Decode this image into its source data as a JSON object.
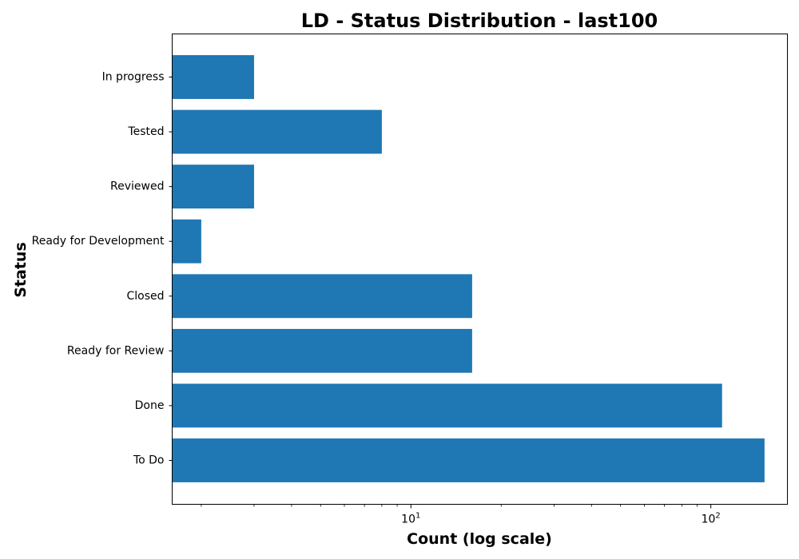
{
  "chart_data": {
    "type": "bar",
    "orientation": "horizontal",
    "title": "LD - Status Distribution - last100",
    "xlabel": "Count (log scale)",
    "ylabel": "Status",
    "x_scale": "log",
    "xlim": [
      1.6,
      180
    ],
    "x_ticks": [
      {
        "value": 10,
        "base": "10",
        "exponent": "1"
      },
      {
        "value": 100,
        "base": "10",
        "exponent": "2"
      }
    ],
    "categories": [
      "In progress",
      "Tested",
      "Reviewed",
      "Ready for Development",
      "Closed",
      "Ready for Review",
      "Done",
      "To Do"
    ],
    "values": [
      3,
      8,
      3,
      2,
      16,
      16,
      109,
      151
    ],
    "grid": false,
    "legend": "none",
    "bar_color": "#1f77b4"
  }
}
